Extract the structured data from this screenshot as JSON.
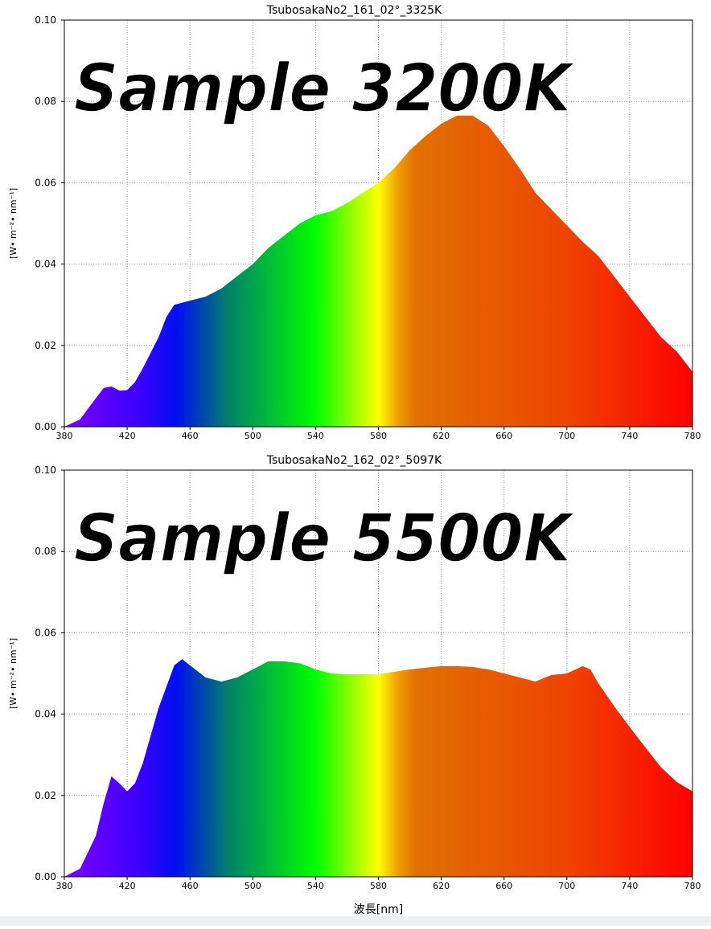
{
  "chart_data": [
    {
      "type": "area",
      "title": "TsubosakaNo2_161_02°_3325K",
      "annotation": "Sample 3200K",
      "ylabel": "[W• m⁻²• nm⁻¹]",
      "x": [
        380,
        390,
        400,
        405,
        410,
        415,
        420,
        425,
        430,
        440,
        445,
        450,
        460,
        470,
        480,
        490,
        500,
        510,
        520,
        530,
        540,
        550,
        560,
        570,
        580,
        590,
        600,
        610,
        620,
        630,
        640,
        650,
        660,
        670,
        680,
        690,
        700,
        710,
        720,
        730,
        740,
        750,
        760,
        770,
        780
      ],
      "values": [
        0,
        0.0018,
        0.007,
        0.0095,
        0.0099,
        0.0089,
        0.009,
        0.011,
        0.0144,
        0.022,
        0.027,
        0.03,
        0.031,
        0.032,
        0.034,
        0.037,
        0.04,
        0.044,
        0.047,
        0.05,
        0.052,
        0.053,
        0.055,
        0.0575,
        0.06,
        0.0635,
        0.068,
        0.0715,
        0.0745,
        0.0765,
        0.0765,
        0.074,
        0.069,
        0.0635,
        0.0575,
        0.0535,
        0.0495,
        0.0455,
        0.042,
        0.037,
        0.032,
        0.027,
        0.022,
        0.0185,
        0.0135
      ],
      "xlim": [
        380,
        780
      ],
      "ylim": [
        0,
        0.1
      ],
      "xticks": [
        380,
        420,
        460,
        500,
        540,
        580,
        620,
        660,
        700,
        740,
        780
      ],
      "yticks": [
        {
          "value": 0,
          "label": "0.00"
        },
        {
          "value": 0.02,
          "label": "0.02"
        },
        {
          "value": 0.04,
          "label": "0.04"
        },
        {
          "value": 0.06,
          "label": "0.06"
        },
        {
          "value": 0.08,
          "label": "0.08"
        },
        {
          "value": 0.1,
          "label": "0.10"
        }
      ],
      "grid": true
    },
    {
      "type": "area",
      "title": "TsubosakaNo2_162_02°_5097K",
      "annotation": "Sample 5500K",
      "ylabel": "[W• m⁻²• nm⁻¹]",
      "xlabel": "波長[nm]",
      "x": [
        380,
        390,
        400,
        405,
        410,
        415,
        420,
        425,
        430,
        440,
        450,
        455,
        460,
        470,
        480,
        490,
        500,
        510,
        520,
        530,
        540,
        550,
        560,
        570,
        580,
        590,
        600,
        610,
        620,
        630,
        640,
        650,
        660,
        670,
        680,
        690,
        700,
        710,
        715,
        720,
        730,
        740,
        750,
        760,
        770,
        780
      ],
      "values": [
        0,
        0.002,
        0.01,
        0.018,
        0.0247,
        0.023,
        0.021,
        0.023,
        0.028,
        0.0415,
        0.052,
        0.0535,
        0.052,
        0.049,
        0.048,
        0.049,
        0.051,
        0.053,
        0.053,
        0.0525,
        0.051,
        0.05,
        0.0498,
        0.0498,
        0.0498,
        0.0504,
        0.051,
        0.0514,
        0.0518,
        0.0518,
        0.0516,
        0.051,
        0.05,
        0.049,
        0.048,
        0.0496,
        0.05,
        0.0518,
        0.051,
        0.0476,
        0.042,
        0.0368,
        0.0318,
        0.0269,
        0.0233,
        0.021
      ],
      "xlim": [
        380,
        780
      ],
      "ylim": [
        0,
        0.1
      ],
      "xticks": [
        380,
        420,
        460,
        500,
        540,
        580,
        620,
        660,
        700,
        740,
        780
      ],
      "yticks": [
        {
          "value": 0,
          "label": "0.00"
        },
        {
          "value": 0.02,
          "label": "0.02"
        },
        {
          "value": 0.04,
          "label": "0.04"
        },
        {
          "value": 0.06,
          "label": "0.06"
        },
        {
          "value": 0.08,
          "label": "0.08"
        },
        {
          "value": 0.1,
          "label": "0.10"
        }
      ],
      "grid": true
    }
  ]
}
